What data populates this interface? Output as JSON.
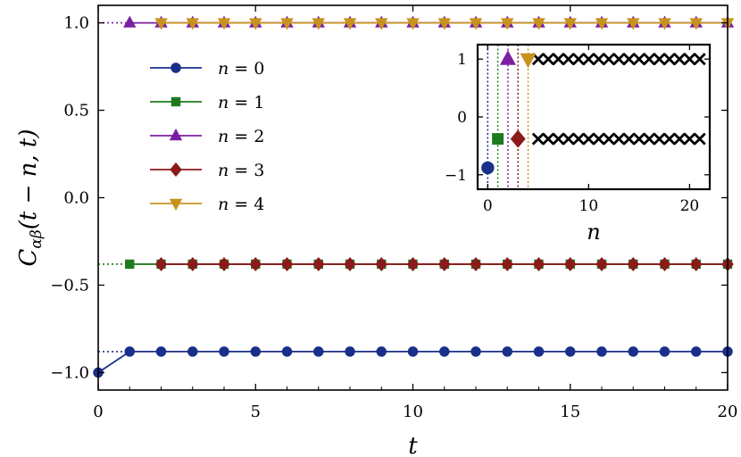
{
  "chart_data": [
    {
      "type": "line",
      "title": "",
      "xlabel": "t",
      "ylabel": "C_αβ(t − n, t)",
      "ylabel_parts": {
        "main": "C",
        "sub": "αβ",
        "args": "(t − n, t)"
      },
      "xlim": [
        0,
        20
      ],
      "ylim": [
        -1.1,
        1.1
      ],
      "x_ticks": [
        0,
        5,
        10,
        15,
        20
      ],
      "x_tick_labels": [
        "0",
        "5",
        "10",
        "15",
        "20"
      ],
      "y_ticks": [
        -1.0,
        -0.5,
        0.0,
        0.5,
        1.0
      ],
      "y_tick_labels": [
        "−1.0",
        "−0.5",
        "0.0",
        "0.5",
        "1.0"
      ],
      "legend_position": "upper-left",
      "reference_lines": [
        {
          "y": 1.0,
          "color": "#7b1fa2",
          "style": "dotted"
        },
        {
          "y": -0.38,
          "color": "#1f7a1f",
          "style": "dotted"
        },
        {
          "y": -0.88,
          "color": "#1a2f8a",
          "style": "dotted"
        }
      ],
      "series": [
        {
          "name": "n = 0",
          "label_var": "n",
          "label_val": "0",
          "marker": "circle",
          "color": "#1a2f8a",
          "start": 0,
          "x": [
            0,
            1,
            2,
            3,
            4,
            5,
            6,
            7,
            8,
            9,
            10,
            11,
            12,
            13,
            14,
            15,
            16,
            17,
            18,
            19,
            20
          ],
          "y": [
            -1.0,
            -0.88,
            -0.88,
            -0.88,
            -0.88,
            -0.88,
            -0.88,
            -0.88,
            -0.88,
            -0.88,
            -0.88,
            -0.88,
            -0.88,
            -0.88,
            -0.88,
            -0.88,
            -0.88,
            -0.88,
            -0.88,
            -0.88,
            -0.88
          ]
        },
        {
          "name": "n = 1",
          "label_var": "n",
          "label_val": "1",
          "marker": "square",
          "color": "#1f7a1f",
          "start": 1,
          "x": [
            1,
            2,
            3,
            4,
            5,
            6,
            7,
            8,
            9,
            10,
            11,
            12,
            13,
            14,
            15,
            16,
            17,
            18,
            19,
            20
          ],
          "y": [
            -0.38,
            -0.38,
            -0.38,
            -0.38,
            -0.38,
            -0.38,
            -0.38,
            -0.38,
            -0.38,
            -0.38,
            -0.38,
            -0.38,
            -0.38,
            -0.38,
            -0.38,
            -0.38,
            -0.38,
            -0.38,
            -0.38,
            -0.38
          ]
        },
        {
          "name": "n = 2",
          "label_var": "n",
          "label_val": "2",
          "marker": "triangle-up",
          "color": "#7b1fa2",
          "start": 1,
          "x": [
            1,
            2,
            3,
            4,
            5,
            6,
            7,
            8,
            9,
            10,
            11,
            12,
            13,
            14,
            15,
            16,
            17,
            18,
            19,
            20
          ],
          "y": [
            1.0,
            1.0,
            1.0,
            1.0,
            1.0,
            1.0,
            1.0,
            1.0,
            1.0,
            1.0,
            1.0,
            1.0,
            1.0,
            1.0,
            1.0,
            1.0,
            1.0,
            1.0,
            1.0,
            1.0
          ]
        },
        {
          "name": "n = 3",
          "label_var": "n",
          "label_val": "3",
          "marker": "diamond",
          "color": "#8b1a1a",
          "start": 2,
          "x": [
            2,
            3,
            4,
            5,
            6,
            7,
            8,
            9,
            10,
            11,
            12,
            13,
            14,
            15,
            16,
            17,
            18,
            19,
            20
          ],
          "y": [
            -0.38,
            -0.38,
            -0.38,
            -0.38,
            -0.38,
            -0.38,
            -0.38,
            -0.38,
            -0.38,
            -0.38,
            -0.38,
            -0.38,
            -0.38,
            -0.38,
            -0.38,
            -0.38,
            -0.38,
            -0.38,
            -0.38
          ]
        },
        {
          "name": "n = 4",
          "label_var": "n",
          "label_val": "4",
          "marker": "triangle-down",
          "color": "#c8921e",
          "start": 2,
          "x": [
            2,
            3,
            4,
            5,
            6,
            7,
            8,
            9,
            10,
            11,
            12,
            13,
            14,
            15,
            16,
            17,
            18,
            19,
            20
          ],
          "y": [
            1.0,
            1.0,
            1.0,
            1.0,
            1.0,
            1.0,
            1.0,
            1.0,
            1.0,
            1.0,
            1.0,
            1.0,
            1.0,
            1.0,
            1.0,
            1.0,
            1.0,
            1.0,
            1.0
          ]
        }
      ]
    },
    {
      "type": "scatter",
      "title": "",
      "xlabel": "n",
      "ylabel": "",
      "xlim": [
        -1,
        22
      ],
      "ylim": [
        -1.25,
        1.25
      ],
      "x_ticks": [
        0,
        10,
        20
      ],
      "x_tick_labels": [
        "0",
        "10",
        "20"
      ],
      "y_ticks": [
        -1,
        0,
        1
      ],
      "y_tick_labels": [
        "−1",
        "0",
        "1"
      ],
      "highlighted_points": [
        {
          "n": 0,
          "value": -0.88,
          "marker": "circle",
          "color": "#1a2f8a"
        },
        {
          "n": 1,
          "value": -0.38,
          "marker": "square",
          "color": "#1f7a1f"
        },
        {
          "n": 2,
          "value": 1.0,
          "marker": "triangle-up",
          "color": "#7b1fa2"
        },
        {
          "n": 3,
          "value": -0.38,
          "marker": "diamond",
          "color": "#8b1a1a"
        },
        {
          "n": 4,
          "value": 1.0,
          "marker": "triangle-down",
          "color": "#c8921e"
        }
      ],
      "cross_points": {
        "marker": "x",
        "color": "#000000",
        "x": [
          5,
          6,
          7,
          8,
          9,
          10,
          11,
          12,
          13,
          14,
          15,
          16,
          17,
          18,
          19,
          20,
          21,
          5,
          6,
          7,
          8,
          9,
          10,
          11,
          12,
          13,
          14,
          15,
          16,
          17,
          18,
          19,
          20,
          21
        ],
        "y": [
          1,
          1,
          1,
          1,
          1,
          1,
          1,
          1,
          1,
          1,
          1,
          1,
          1,
          1,
          1,
          1,
          1,
          -0.38,
          -0.38,
          -0.38,
          -0.38,
          -0.38,
          -0.38,
          -0.38,
          -0.38,
          -0.38,
          -0.38,
          -0.38,
          -0.38,
          -0.38,
          -0.38,
          -0.38,
          -0.38,
          -0.38
        ]
      },
      "vertical_guides": [
        {
          "n": 0,
          "color": "#1a2f8a"
        },
        {
          "n": 1,
          "color": "#1f7a1f"
        },
        {
          "n": 2,
          "color": "#7b1fa2"
        },
        {
          "n": 3,
          "color": "#8b1a1a"
        },
        {
          "n": 4,
          "color": "#c8921e"
        }
      ]
    }
  ]
}
